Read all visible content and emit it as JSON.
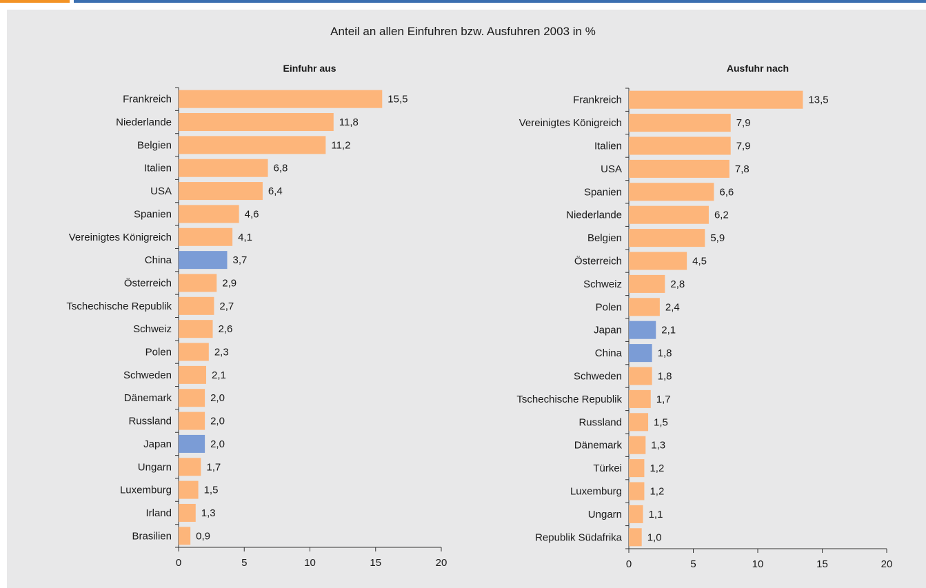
{
  "title": "Anteil an allen Einfuhren bzw. Ausfuhren 2003 in %",
  "colors": {
    "default": "#fdb57a",
    "highlight": "#7b9cd6",
    "accent_bar": "#f39325",
    "header_rule": "#3b6fb0",
    "background": "#e8e8e9"
  },
  "chart_data": [
    {
      "type": "bar",
      "orientation": "horizontal",
      "title": "Einfuhr aus",
      "categories": [
        "Frankreich",
        "Niederlande",
        "Belgien",
        "Italien",
        "USA",
        "Spanien",
        "Vereinigtes Königreich",
        "China",
        "Österreich",
        "Tschechische Republik",
        "Schweiz",
        "Polen",
        "Schweden",
        "Dänemark",
        "Russland",
        "Japan",
        "Ungarn",
        "Luxemburg",
        "Irland",
        "Brasilien"
      ],
      "values": [
        15.5,
        11.8,
        11.2,
        6.8,
        6.4,
        4.6,
        4.1,
        3.7,
        2.9,
        2.7,
        2.6,
        2.3,
        2.1,
        2.0,
        2.0,
        2.0,
        1.7,
        1.5,
        1.3,
        0.9
      ],
      "value_labels": [
        "15,5",
        "11,8",
        "11,2",
        "6,8",
        "6,4",
        "4,6",
        "4,1",
        "3,7",
        "2,9",
        "2,7",
        "2,6",
        "2,3",
        "2,1",
        "2,0",
        "2,0",
        "2,0",
        "1,7",
        "1,5",
        "1,3",
        "0,9"
      ],
      "highlight": [
        "China",
        "Japan"
      ],
      "xlim": [
        0,
        20
      ],
      "xticks": [
        0,
        5,
        10,
        15,
        20
      ],
      "xtick_labels": [
        "0",
        "5",
        "10",
        "15",
        "20"
      ]
    },
    {
      "type": "bar",
      "orientation": "horizontal",
      "title": "Ausfuhr nach",
      "categories": [
        "Frankreich",
        "Vereinigtes Königreich",
        "Italien",
        "USA",
        "Spanien",
        "Niederlande",
        "Belgien",
        "Österreich",
        "Schweiz",
        "Polen",
        "Japan",
        "China",
        "Schweden",
        "Tschechische Republik",
        "Russland",
        "Dänemark",
        "Türkei",
        "Luxemburg",
        "Ungarn",
        "Republik Südafrika"
      ],
      "values": [
        13.5,
        7.9,
        7.9,
        7.8,
        6.6,
        6.2,
        5.9,
        4.5,
        2.8,
        2.4,
        2.1,
        1.8,
        1.8,
        1.7,
        1.5,
        1.3,
        1.2,
        1.2,
        1.1,
        1.0
      ],
      "value_labels": [
        "13,5",
        "7,9",
        "7,9",
        "7,8",
        "6,6",
        "6,2",
        "5,9",
        "4,5",
        "2,8",
        "2,4",
        "2,1",
        "1,8",
        "1,8",
        "1,7",
        "1,5",
        "1,3",
        "1,2",
        "1,2",
        "1,1",
        "1,0"
      ],
      "highlight": [
        "Japan",
        "China"
      ],
      "xlim": [
        0,
        20
      ],
      "xticks": [
        0,
        5,
        10,
        15,
        20
      ],
      "xtick_labels": [
        "0",
        "5",
        "10",
        "15",
        "20"
      ]
    }
  ]
}
